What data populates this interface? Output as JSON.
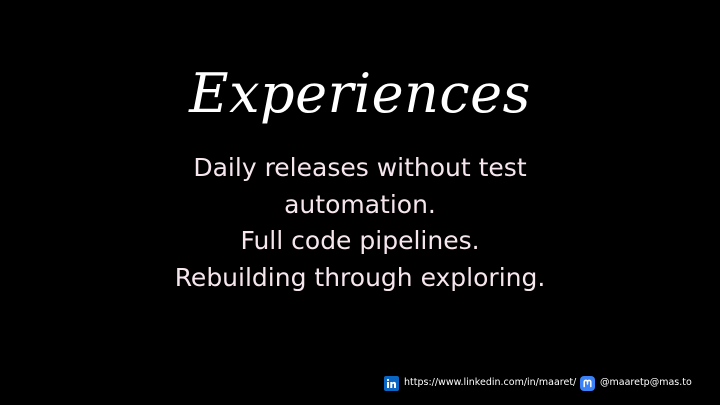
{
  "slide": {
    "title": "Experiences",
    "lines": [
      "Daily releases without test",
      "automation.",
      "Full code pipelines.",
      "Rebuilding through exploring."
    ]
  },
  "footer": {
    "linkedin": {
      "icon": "linkedin-icon",
      "text": "https://www.linkedin.com/in/maaret/",
      "color": "#0A66C2"
    },
    "mastodon": {
      "icon": "mastodon-icon",
      "text": "@maaretp@mas.to",
      "color": "#3B82F6"
    }
  },
  "colors": {
    "background": "#000000",
    "title": "#ffffff",
    "body": "#f6e6ee"
  }
}
